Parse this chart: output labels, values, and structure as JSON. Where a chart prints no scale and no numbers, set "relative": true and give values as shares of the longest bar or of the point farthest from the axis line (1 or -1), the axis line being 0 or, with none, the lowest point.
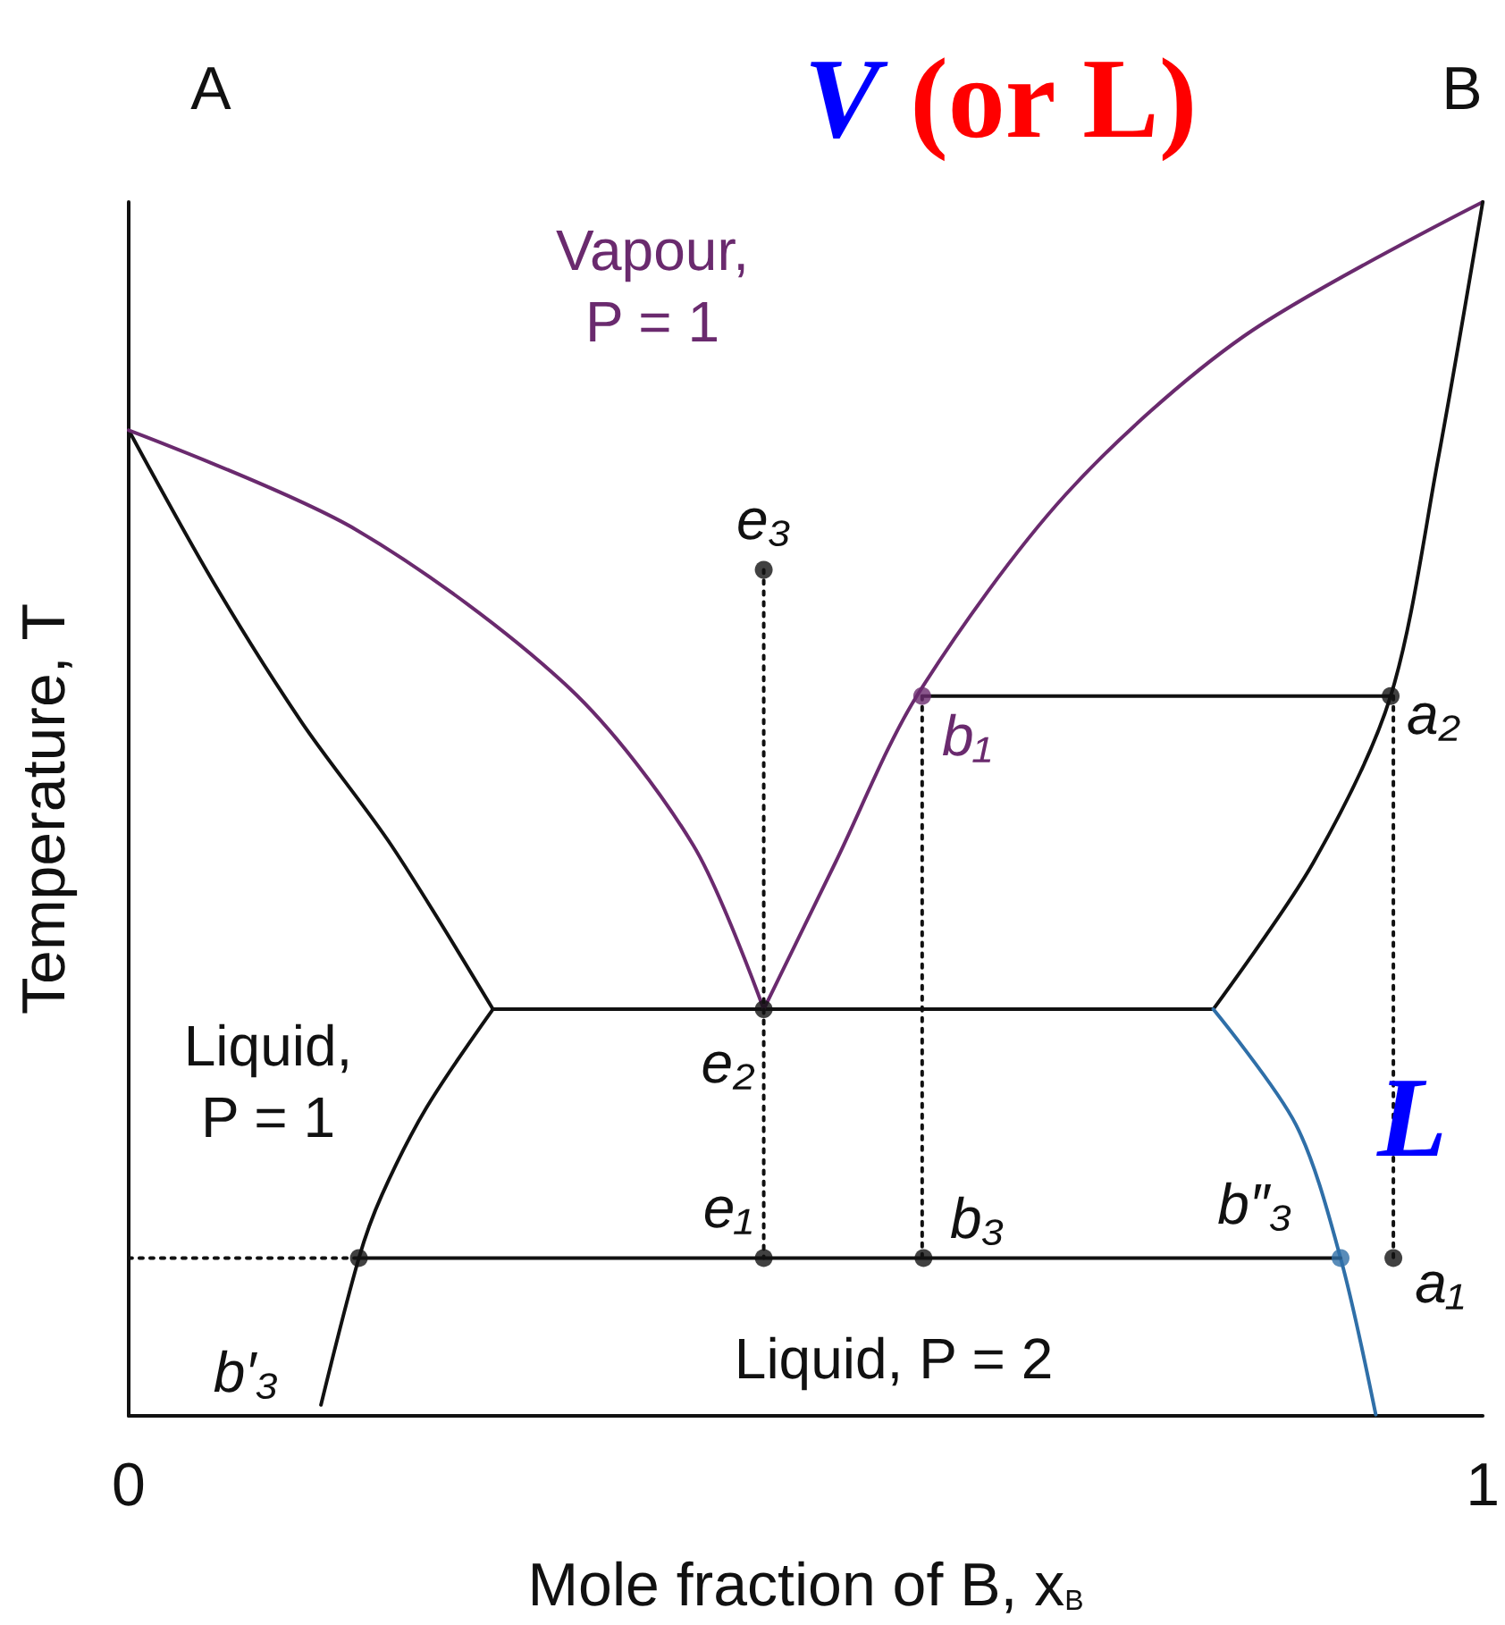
{
  "chart_data": {
    "type": "line",
    "relative": true,
    "xlabel": "Mole fraction of B, x$_{B}$",
    "ylabel": "Temperature, T",
    "xlim": [
      0,
      1
    ],
    "xticks": [
      0,
      1
    ],
    "tick_labels": "x",
    "grid": false,
    "marker": "none",
    "series": [
      {
        "color": "#111111",
        "x": [
          0,
          0.063,
          0.128,
          0.194,
          0.269
        ],
        "values": [
          0.812,
          0.686,
          0.571,
          0.47,
          0.335
        ]
      },
      {
        "color": "#111111",
        "x": [
          0.269,
          0.801
        ],
        "values": [
          0.335,
          0.335
        ]
      },
      {
        "color": "#111111",
        "x": [
          0.269,
          0.22,
          0.187,
          0.17,
          0.142
        ],
        "values": [
          0.335,
          0.254,
          0.182,
          0.13,
          0.009
        ]
      },
      {
        "color": "#6a2a6e",
        "x": [
          0,
          0.168,
          0.325,
          0.417,
          0.469
        ],
        "values": [
          0.812,
          0.73,
          0.6,
          0.47,
          0.335
        ]
      },
      {
        "color": "#6a2a6e",
        "x": [
          0.469,
          0.522,
          0.582,
          0.692,
          0.823,
          1
        ],
        "values": [
          0.335,
          0.456,
          0.593,
          0.759,
          0.889,
          1
        ]
      },
      {
        "color": "#111111",
        "x": [
          0.801,
          0.875,
          0.932,
          0.967,
          1
        ],
        "values": [
          0.335,
          0.456,
          0.593,
          0.788,
          1
        ]
      },
      {
        "color": "#111111",
        "x": [
          0.586,
          0.932
        ],
        "values": [
          0.593,
          0.593
        ]
      },
      {
        "color": "#2f6fa8",
        "x": [
          0.801,
          0.862,
          0.895,
          0.921
        ],
        "values": [
          0.335,
          0.24,
          0.13,
          0.001
        ]
      },
      {
        "color": "#111111",
        "x": [
          0.17,
          0.895
        ],
        "values": [
          0.13,
          0.13
        ]
      },
      {
        "color": "#111111",
        "line_style": "dotted",
        "x": [
          0,
          0.17
        ],
        "values": [
          0.13,
          0.13
        ]
      },
      {
        "color": "#111111",
        "line_style": "dotted",
        "x": [
          0.469,
          0.469
        ],
        "values": [
          0.697,
          0.13
        ]
      },
      {
        "color": "#111111",
        "line_style": "dotted",
        "x": [
          0.586,
          0.586
        ],
        "values": [
          0.593,
          0.13
        ]
      },
      {
        "color": "#111111",
        "line_style": "dotted",
        "x": [
          0.934,
          0.934
        ],
        "values": [
          0.593,
          0.13
        ]
      },
      {
        "type": "scatter",
        "marker": "circle",
        "x": [
          0.469,
          0.469,
          0.469,
          0.587,
          0.586,
          0.932,
          0.934,
          0.895,
          0.17
        ],
        "values": [
          0.697,
          0.335,
          0.13,
          0.13,
          0.593,
          0.593,
          0.13,
          0.13,
          0.13
        ],
        "colors": [
          "#111111",
          "#111111",
          "#111111",
          "#111111",
          "#6a2a6e",
          "#111111",
          "#111111",
          "#2f6fa8",
          "#111111"
        ]
      }
    ],
    "annotations": [
      "A",
      "B",
      "V (or L)",
      "L",
      "Vapour, P = 1",
      "Liquid, P = 1",
      "Liquid, P = 2",
      {
        "text": "e₃",
        "x": 0.469,
        "y": 0.697
      },
      {
        "text": "e₂",
        "x": 0.469,
        "y": 0.335
      },
      {
        "text": "e₁",
        "x": 0.469,
        "y": 0.13
      },
      {
        "text": "b₃",
        "x": 0.587,
        "y": 0.13
      },
      {
        "text": "b₁",
        "x": 0.586,
        "y": 0.593
      },
      {
        "text": "a₂",
        "x": 0.932,
        "y": 0.593
      },
      {
        "text": "a₁",
        "x": 0.934,
        "y": 0.13
      },
      {
        "text": "b″₃",
        "x": 0.895,
        "y": 0.13
      },
      {
        "text": "b′₃",
        "x": 0.142,
        "y": 0.03
      }
    ]
  }
}
